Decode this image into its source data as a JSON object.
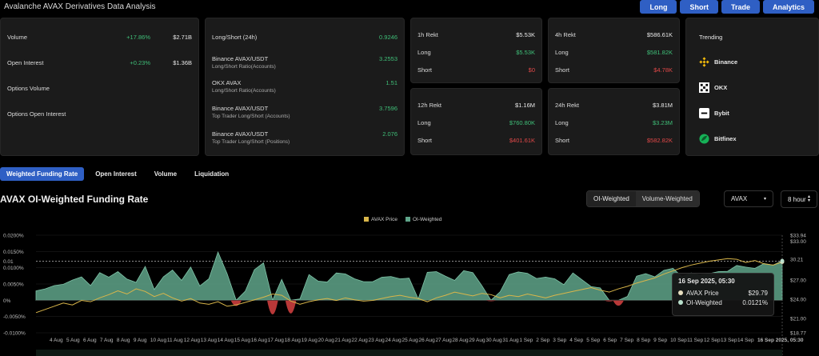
{
  "page_title": "Avalanche AVAX Derivatives Data Analysis",
  "top_buttons": [
    "Long",
    "Short",
    "Trade",
    "Analytics"
  ],
  "overview": [
    {
      "label": "Volume",
      "change": "+17.86%",
      "value": "$2.71B"
    },
    {
      "label": "Open Interest",
      "change": "+0.23%",
      "value": "$1.36B"
    },
    {
      "label": "Options Volume",
      "change": "",
      "value": ""
    },
    {
      "label": "Options Open Interest",
      "change": "",
      "value": ""
    }
  ],
  "ratios": [
    {
      "label": "Long/Short (24h)",
      "sub": "",
      "value": "0.9246"
    },
    {
      "label": "Binance AVAX/USDT",
      "sub": "Long/Short Ratio(Accounts)",
      "value": "3.2553"
    },
    {
      "label": "OKX AVAX",
      "sub": "Long/Short Ratio(Accounts)",
      "value": "1.51"
    },
    {
      "label": "Binance AVAX/USDT",
      "sub": "Top Trader Long/Short (Accounts)",
      "value": "3.7596"
    },
    {
      "label": "Binance AVAX/USDT",
      "sub": "Top Trader Long/Short (Positions)",
      "value": "2.076"
    }
  ],
  "rekt": [
    {
      "title": "1h Rekt",
      "total": "$5.53K",
      "long_label": "Long",
      "long": "$5.53K",
      "short_label": "Short",
      "short": "$0"
    },
    {
      "title": "4h Rekt",
      "total": "$586.61K",
      "long_label": "Long",
      "long": "$581.82K",
      "short_label": "Short",
      "short": "$4.78K"
    },
    {
      "title": "12h Rekt",
      "total": "$1.16M",
      "long_label": "Long",
      "long": "$760.80K",
      "short_label": "Short",
      "short": "$401.61K"
    },
    {
      "title": "24h Rekt",
      "total": "$3.81M",
      "long_label": "Long",
      "long": "$3.23M",
      "short_label": "Short",
      "short": "$582.82K"
    }
  ],
  "trending": {
    "title": "Trending",
    "items": [
      "Binance",
      "OKX",
      "Bybit",
      "Bitfinex"
    ]
  },
  "tabs": [
    "Weighted Funding Rate",
    "Open Interest",
    "Volume",
    "Liquidation"
  ],
  "chart_title": "AVAX OI-Weighted Funding Rate",
  "segment": [
    "OI-Weighted",
    "Volume-Weighted"
  ],
  "symbol_select": "AVAX",
  "interval_select": "8 hour",
  "tooltip": {
    "date": "16 Sep 2025, 05:30",
    "price_label": "AVAX Price",
    "price": "$29.79",
    "oi_label": "OI-Weighted",
    "oi": "0.0121%"
  },
  "colors": {
    "accent": "#2f5fc4",
    "area": "#5fa58a",
    "price": "#d9b64a",
    "negative": "#c23b3b",
    "positive_text": "#3fbf78",
    "negative_text": "#e04848"
  },
  "chart_data": {
    "type": "area",
    "legend": [
      "AVAX Price",
      "OI-Weighted"
    ],
    "left_ticks": [
      "0.0200%",
      "0.0150%",
      "0.01",
      "0.0100%",
      "0.0050%",
      "0%",
      "-0.0050%",
      "-0.0100%"
    ],
    "right_ticks": [
      "$33.94",
      "$33.00",
      "30.21",
      "$27.00",
      "$24.00",
      "$21.00",
      "$18.77"
    ],
    "x_ticks": [
      "4 Aug",
      "5 Aug",
      "6 Aug",
      "7 Aug",
      "8 Aug",
      "9 Aug",
      "10 Aug",
      "11 Aug",
      "12 Aug",
      "13 Aug",
      "14 Aug",
      "15 Aug",
      "16 Aug",
      "17 Aug",
      "18 Aug",
      "19 Aug",
      "20 Aug",
      "21 Aug",
      "22 Aug",
      "23 Aug",
      "24 Aug",
      "25 Aug",
      "26 Aug",
      "27 Aug",
      "28 Aug",
      "29 Aug",
      "30 Aug",
      "31 Aug",
      "1 Sep",
      "2 Sep",
      "3 Sep",
      "4 Sep",
      "5 Sep",
      "6 Sep",
      "7 Sep",
      "8 Sep",
      "9 Sep",
      "10 Sep",
      "11 Sep",
      "12 Sep",
      "13 Sep",
      "14 Sep",
      "16 Sep 2025, 05:30"
    ],
    "ylim": [
      -0.01,
      0.02
    ],
    "price_lim": [
      18.77,
      33.94
    ],
    "funding_rate": [
      0.0029,
      0.0035,
      0.0045,
      0.0049,
      0.0062,
      0.0072,
      0.0045,
      0.0085,
      0.0071,
      0.0088,
      0.0065,
      0.0055,
      0.0104,
      0.0033,
      0.0072,
      0.0093,
      0.0061,
      0.0102,
      0.0044,
      0.0066,
      0.0148,
      0.0082,
      -0.0025,
      0.0028,
      0.0094,
      0.0115,
      -0.0062,
      0.0064,
      -0.0058,
      0.0004,
      0.0079,
      0.0059,
      0.0056,
      0.0084,
      0.0081,
      0.0066,
      0.0057,
      0.0057,
      0.0071,
      0.0073,
      0.0066,
      0.0068,
      0.0004,
      0.0086,
      0.0088,
      0.0074,
      0.0061,
      0.0091,
      0.0085,
      0.0045,
      -0.0004,
      0.0026,
      0.0079,
      0.0087,
      0.0083,
      0.0067,
      0.0071,
      0.0066,
      0.0048,
      0.0084,
      0.0063,
      0.0042,
      0.0038,
      -0.0005,
      -0.0024,
      0.0012,
      0.0074,
      0.0082,
      0.0072,
      0.0092,
      0.0098,
      0.0072,
      0.0084,
      0.0076,
      0.0082,
      0.0088,
      0.0089,
      0.0107,
      0.0102,
      0.0098,
      0.0113,
      0.0108,
      0.0121
    ],
    "price": [
      21.9,
      22.4,
      22.9,
      23.4,
      23.1,
      23.8,
      23.6,
      24.2,
      24.7,
      25.3,
      24.8,
      25.6,
      25.2,
      24.4,
      24.9,
      24.2,
      23.7,
      24.1,
      23.4,
      23.2,
      23.6,
      22.9,
      23.1,
      23.5,
      23.9,
      24.3,
      24.8,
      24.6,
      23.7,
      23.2,
      23.6,
      23.9,
      24.1,
      23.8,
      24.2,
      23.9,
      23.7,
      23.8,
      24.1,
      24.4,
      24.6,
      24.3,
      24.1,
      23.6,
      24.2,
      24.6,
      25.1,
      24.8,
      24.5,
      24.9,
      24.7,
      24.2,
      24.6,
      24.4,
      24.8,
      24.5,
      24.2,
      24.6,
      24.9,
      25.2,
      25.5,
      25.8,
      25.4,
      25.1,
      25.6,
      26.0,
      26.5,
      26.9,
      27.3,
      27.9,
      28.4,
      28.9,
      29.3,
      29.6,
      29.9,
      30.1,
      30.3,
      30.2,
      29.7,
      30.0,
      29.5,
      29.3,
      29.79
    ]
  }
}
